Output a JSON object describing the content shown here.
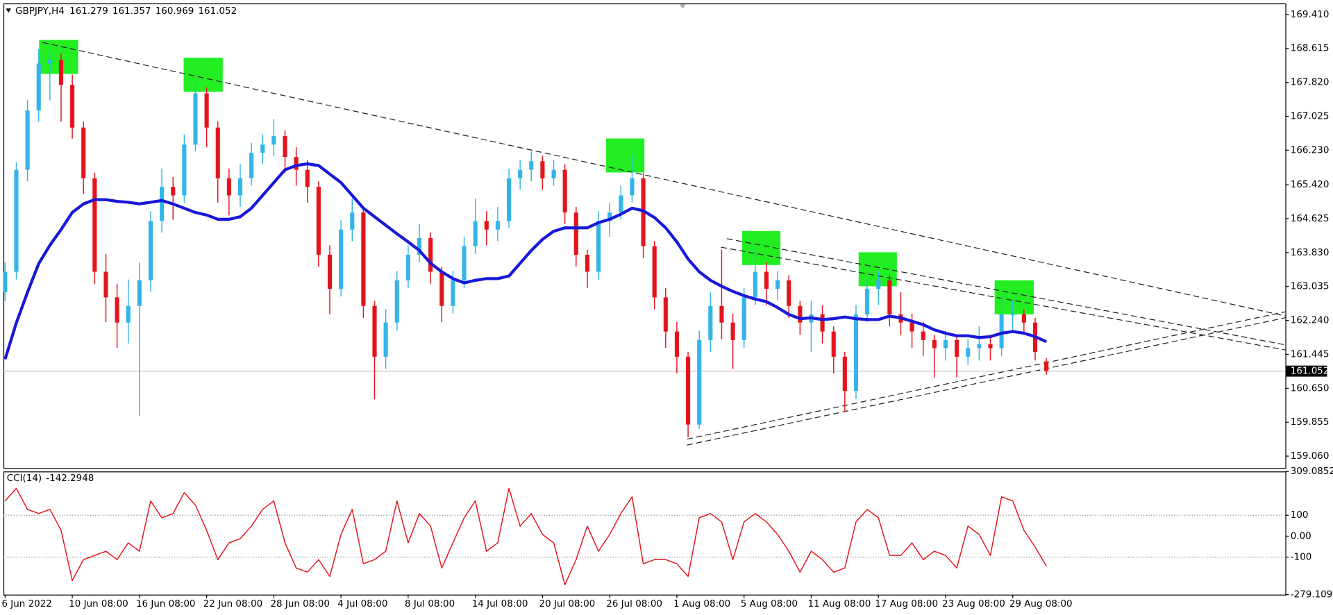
{
  "chart_data": [
    {
      "type": "candlestick",
      "symbol": "GBPJPY,H4",
      "categories": [
        "6 Jun 2022",
        null,
        null,
        null,
        null,
        null,
        "10 Jun 08:00",
        null,
        null,
        null,
        null,
        null,
        "16 Jun 08:00",
        null,
        null,
        null,
        null,
        null,
        "22 Jun 08:00",
        null,
        null,
        null,
        null,
        null,
        "28 Jun 08:00",
        null,
        null,
        null,
        null,
        null,
        "4 Jul 08:00",
        null,
        null,
        null,
        null,
        null,
        "8 Jul 08:00",
        null,
        null,
        null,
        null,
        null,
        "14 Jul 08:00",
        null,
        null,
        null,
        null,
        null,
        "20 Jul 08:00",
        null,
        null,
        null,
        null,
        null,
        "26 Jul 08:00",
        null,
        null,
        null,
        null,
        null,
        "1 Aug 08:00",
        null,
        null,
        null,
        null,
        null,
        "5 Aug 08:00",
        null,
        null,
        null,
        null,
        null,
        "11 Aug 08:00",
        null,
        null,
        null,
        null,
        null,
        "17 Aug 08:00",
        null,
        null,
        null,
        null,
        null,
        "23 Aug 08:00",
        null,
        null,
        null,
        null,
        null,
        "29 Aug 08:00",
        null,
        null,
        null
      ],
      "ohlc": [
        [
          162.9,
          163.6,
          162.7,
          163.38
        ],
        [
          163.38,
          165.95,
          163.2,
          165.77
        ],
        [
          165.77,
          167.4,
          165.5,
          167.16
        ],
        [
          167.16,
          168.6,
          166.9,
          168.26
        ],
        [
          168.26,
          168.55,
          167.4,
          168.35
        ],
        [
          168.35,
          168.5,
          166.9,
          167.76
        ],
        [
          167.76,
          168.0,
          166.5,
          166.76
        ],
        [
          166.76,
          166.9,
          165.2,
          165.57
        ],
        [
          165.57,
          165.7,
          163.1,
          163.38
        ],
        [
          163.38,
          163.8,
          162.2,
          162.78
        ],
        [
          162.78,
          163.1,
          161.6,
          162.19
        ],
        [
          162.19,
          163.2,
          161.7,
          162.58
        ],
        [
          162.58,
          163.6,
          160.0,
          163.18
        ],
        [
          163.18,
          164.8,
          162.9,
          164.57
        ],
        [
          164.57,
          165.8,
          164.3,
          165.37
        ],
        [
          165.37,
          165.6,
          164.6,
          165.17
        ],
        [
          165.17,
          166.6,
          165.0,
          166.36
        ],
        [
          166.36,
          167.86,
          166.2,
          167.56
        ],
        [
          167.56,
          167.7,
          166.3,
          166.76
        ],
        [
          166.76,
          166.9,
          165.0,
          165.57
        ],
        [
          165.57,
          165.8,
          164.7,
          165.17
        ],
        [
          165.17,
          165.9,
          164.9,
          165.57
        ],
        [
          165.57,
          166.4,
          165.4,
          166.17
        ],
        [
          166.17,
          166.6,
          165.9,
          166.36
        ],
        [
          166.36,
          166.96,
          166.1,
          166.56
        ],
        [
          166.56,
          166.7,
          165.7,
          166.07
        ],
        [
          166.07,
          166.3,
          165.4,
          165.77
        ],
        [
          165.77,
          166.0,
          165.0,
          165.37
        ],
        [
          165.37,
          165.5,
          163.5,
          163.78
        ],
        [
          163.78,
          164.0,
          162.38,
          162.98
        ],
        [
          162.98,
          164.6,
          162.8,
          164.37
        ],
        [
          164.37,
          165.1,
          164.1,
          164.77
        ],
        [
          164.77,
          164.9,
          162.3,
          162.58
        ],
        [
          162.58,
          162.7,
          160.39,
          161.39
        ],
        [
          161.39,
          162.5,
          161.1,
          162.19
        ],
        [
          162.19,
          163.4,
          162.0,
          163.18
        ],
        [
          163.18,
          164.0,
          163.0,
          163.78
        ],
        [
          163.78,
          164.5,
          163.6,
          164.17
        ],
        [
          164.17,
          164.3,
          163.1,
          163.38
        ],
        [
          163.38,
          163.5,
          162.2,
          162.58
        ],
        [
          162.58,
          163.4,
          162.4,
          163.18
        ],
        [
          163.18,
          164.2,
          163.0,
          163.98
        ],
        [
          163.98,
          165.1,
          163.8,
          164.57
        ],
        [
          164.57,
          164.8,
          164.0,
          164.37
        ],
        [
          164.37,
          164.9,
          164.1,
          164.57
        ],
        [
          164.57,
          165.8,
          164.4,
          165.57
        ],
        [
          165.57,
          166.0,
          165.3,
          165.77
        ],
        [
          165.77,
          166.2,
          165.5,
          165.97
        ],
        [
          165.97,
          166.1,
          165.3,
          165.57
        ],
        [
          165.57,
          166.0,
          165.4,
          165.77
        ],
        [
          165.77,
          165.9,
          164.5,
          164.77
        ],
        [
          164.77,
          164.9,
          163.5,
          163.78
        ],
        [
          163.78,
          163.9,
          163.0,
          163.38
        ],
        [
          163.38,
          164.8,
          163.2,
          164.57
        ],
        [
          164.57,
          165.0,
          164.2,
          164.77
        ],
        [
          164.77,
          165.4,
          164.6,
          165.17
        ],
        [
          165.17,
          166.1,
          165.0,
          165.57
        ],
        [
          165.57,
          165.7,
          163.7,
          163.98
        ],
        [
          163.98,
          164.1,
          162.5,
          162.78
        ],
        [
          162.78,
          163.0,
          161.6,
          161.98
        ],
        [
          161.98,
          162.2,
          161.0,
          161.39
        ],
        [
          161.39,
          161.5,
          159.5,
          159.8
        ],
        [
          159.8,
          162.0,
          159.7,
          161.78
        ],
        [
          161.78,
          162.9,
          161.5,
          162.58
        ],
        [
          162.58,
          163.9,
          161.8,
          162.19
        ],
        [
          162.19,
          162.4,
          161.1,
          161.78
        ],
        [
          161.78,
          163.0,
          161.6,
          162.78
        ],
        [
          162.78,
          163.98,
          162.6,
          163.38
        ],
        [
          163.38,
          163.6,
          162.6,
          162.98
        ],
        [
          162.98,
          163.4,
          162.7,
          163.18
        ],
        [
          163.18,
          163.3,
          162.3,
          162.58
        ],
        [
          162.58,
          162.7,
          161.9,
          162.19
        ],
        [
          162.19,
          162.7,
          161.5,
          162.38
        ],
        [
          162.38,
          162.6,
          161.7,
          161.98
        ],
        [
          161.98,
          162.1,
          161.0,
          161.39
        ],
        [
          161.39,
          161.5,
          160.1,
          160.59
        ],
        [
          160.59,
          162.6,
          160.4,
          162.38
        ],
        [
          162.38,
          163.2,
          162.2,
          162.98
        ],
        [
          162.98,
          163.4,
          162.6,
          163.18
        ],
        [
          163.18,
          163.3,
          162.1,
          162.38
        ],
        [
          162.38,
          162.9,
          161.9,
          162.19
        ],
        [
          162.19,
          162.4,
          161.6,
          161.98
        ],
        [
          161.98,
          162.2,
          161.4,
          161.78
        ],
        [
          161.78,
          161.9,
          160.9,
          161.59
        ],
        [
          161.59,
          162.0,
          161.3,
          161.78
        ],
        [
          161.78,
          161.9,
          160.9,
          161.39
        ],
        [
          161.39,
          161.8,
          161.2,
          161.59
        ],
        [
          161.59,
          162.1,
          161.3,
          161.68
        ],
        [
          161.68,
          161.9,
          161.3,
          161.59
        ],
        [
          161.59,
          162.88,
          161.4,
          162.38
        ],
        [
          162.38,
          162.7,
          162.0,
          162.38
        ],
        [
          162.38,
          162.5,
          161.9,
          162.19
        ],
        [
          162.19,
          162.3,
          161.3,
          161.5
        ],
        [
          161.279,
          161.357,
          160.969,
          161.052
        ]
      ],
      "up_color": "#33b5ea",
      "down_color": "#e5141c",
      "ma": {
        "color": "#1818d8",
        "values": [
          161.33,
          162.18,
          162.9,
          163.57,
          164.0,
          164.37,
          164.77,
          164.97,
          165.07,
          165.07,
          165.03,
          165.01,
          164.97,
          165.01,
          165.05,
          164.97,
          164.87,
          164.77,
          164.71,
          164.61,
          164.61,
          164.67,
          164.87,
          165.17,
          165.47,
          165.77,
          165.87,
          165.91,
          165.87,
          165.67,
          165.47,
          165.17,
          164.87,
          164.67,
          164.47,
          164.27,
          164.08,
          163.88,
          163.58,
          163.38,
          163.22,
          163.12,
          163.18,
          163.22,
          163.22,
          163.28,
          163.58,
          163.88,
          164.14,
          164.33,
          164.41,
          164.41,
          164.41,
          164.53,
          164.61,
          164.73,
          164.87,
          164.81,
          164.65,
          164.41,
          164.08,
          163.68,
          163.38,
          163.18,
          163.04,
          162.92,
          162.82,
          162.74,
          162.68,
          162.54,
          162.38,
          162.28,
          162.3,
          162.26,
          162.28,
          162.32,
          162.28,
          162.26,
          162.26,
          162.34,
          162.3,
          162.22,
          162.14,
          162.02,
          161.94,
          161.88,
          161.88,
          161.84,
          161.86,
          161.94,
          161.98,
          161.94,
          161.86,
          161.74
        ]
      },
      "ylim": [
        158.78,
        169.67
      ],
      "yticks": [
        {
          "value": 169.41,
          "label": "169.410"
        },
        168.615,
        {
          "value": 167.82,
          "label": "167.820"
        },
        167.025,
        {
          "value": 166.23,
          "label": "166.230"
        },
        {
          "value": 165.42,
          "label": "165.420"
        },
        164.625,
        {
          "value": 163.83,
          "label": "163.830"
        },
        163.035,
        {
          "value": 162.24,
          "label": "162.240"
        },
        161.445,
        {
          "value": 160.65,
          "label": "160.650"
        },
        159.855,
        {
          "value": 159.06,
          "label": "159.060"
        }
      ]
    },
    {
      "type": "line",
      "name": "CCI(14)",
      "color": "#e5141c",
      "values": [
        168,
        228,
        128,
        108,
        128,
        28,
        -212,
        -112,
        -92,
        -72,
        -112,
        -32,
        -72,
        168,
        88,
        108,
        208,
        148,
        28,
        -112,
        -32,
        -12,
        48,
        128,
        168,
        -32,
        -152,
        -172,
        -112,
        -192,
        8,
        128,
        -132,
        -112,
        -72,
        168,
        -32,
        108,
        48,
        -152,
        -32,
        88,
        168,
        -72,
        -32,
        228,
        48,
        108,
        8,
        -32,
        -232,
        -112,
        48,
        -72,
        8,
        108,
        188,
        -132,
        -112,
        -112,
        -132,
        -192,
        88,
        108,
        68,
        -112,
        68,
        108,
        68,
        8,
        -72,
        -172,
        -72,
        -112,
        -172,
        -152,
        68,
        128,
        88,
        -92,
        -92,
        -32,
        -112,
        -72,
        -92,
        -152,
        48,
        8,
        -92,
        188,
        168,
        28,
        -52,
        -142.2948
      ],
      "ylim": [
        -279.1099,
        309.0852
      ],
      "yticks": [
        309.0852,
        100,
        {
          "value": 0,
          "label": "0.00"
        },
        -100,
        -279.1099
      ],
      "levels": [
        100,
        -100
      ]
    }
  ]
}
